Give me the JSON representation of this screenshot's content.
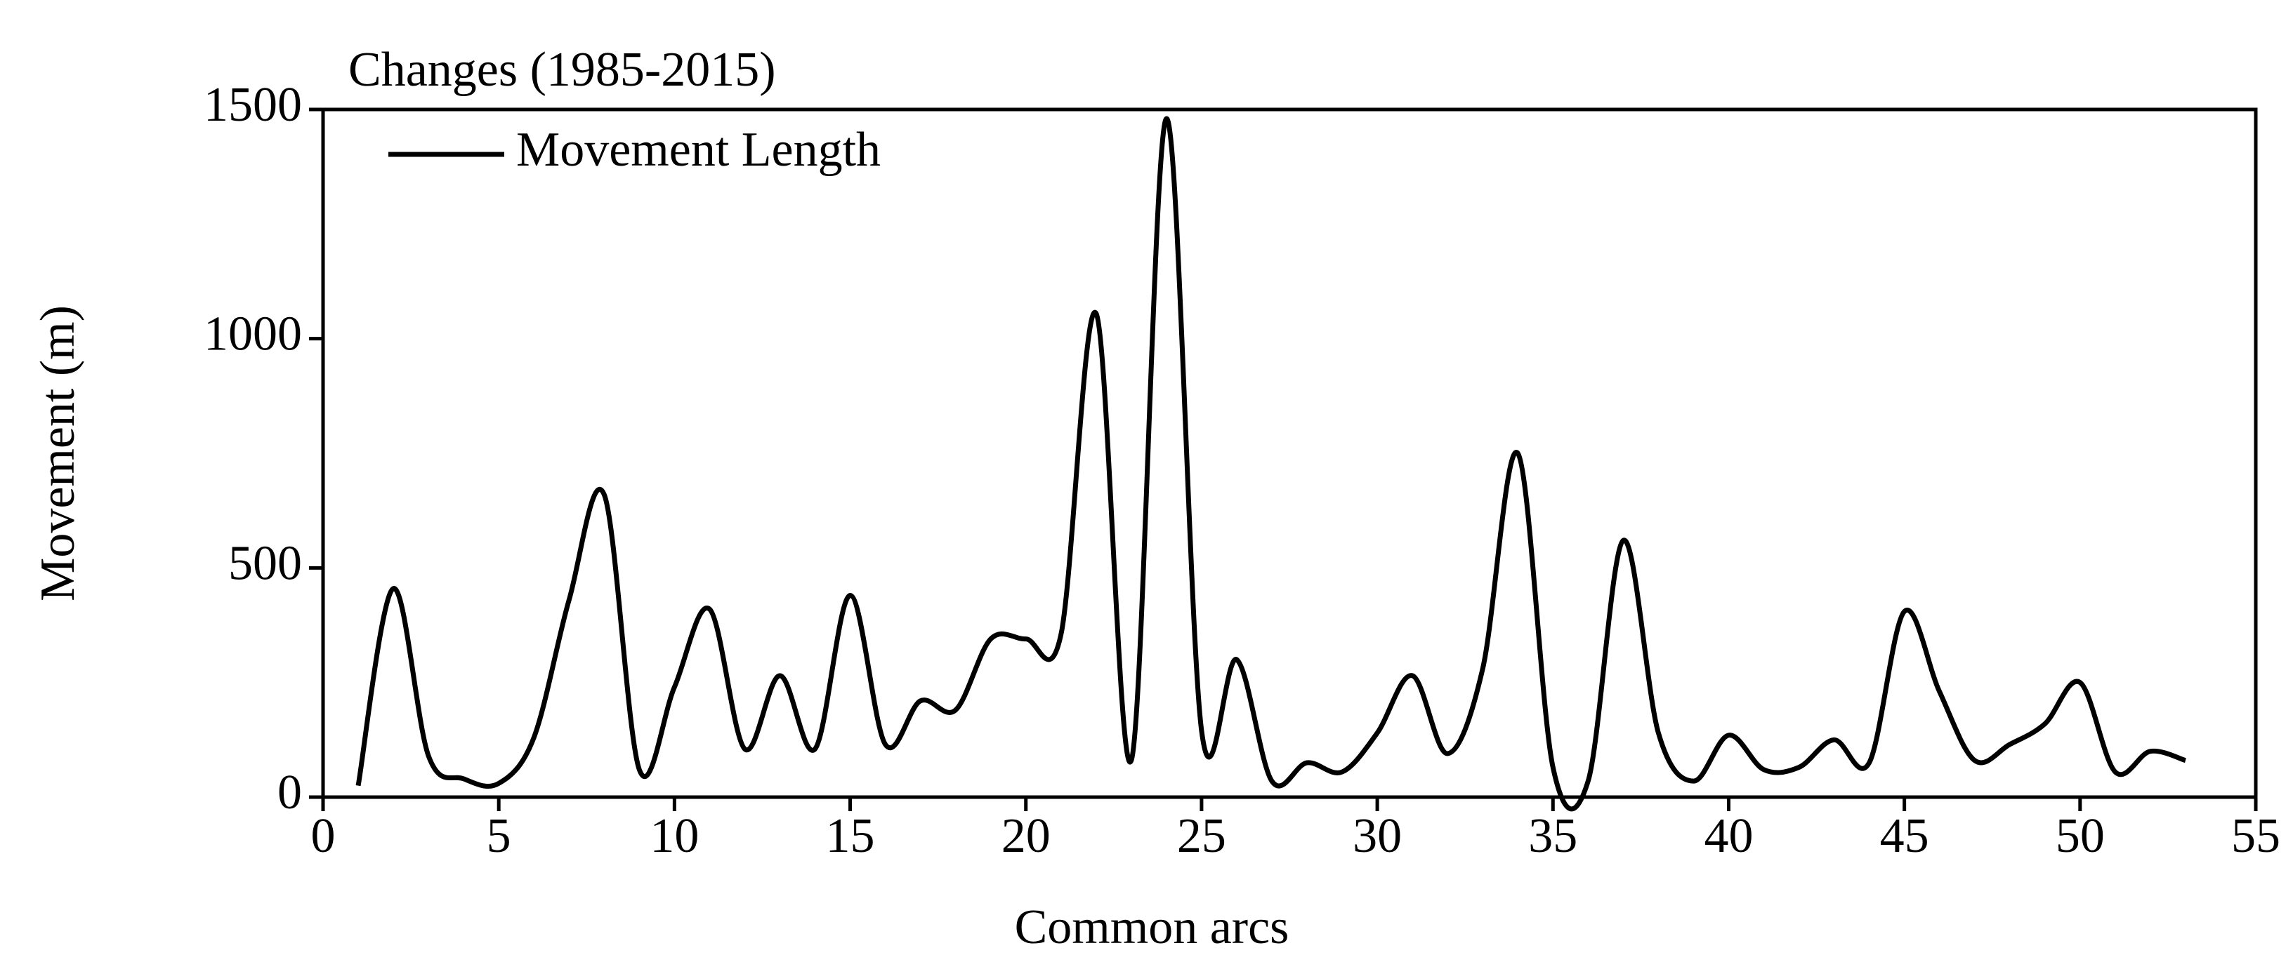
{
  "chart_data": {
    "type": "line",
    "title": "Changes (1985-2015)",
    "x_label": "Common arcs",
    "y_label": "Movement (m)",
    "x": [
      1,
      2,
      3,
      4,
      5,
      6,
      7,
      8,
      9,
      10,
      11,
      12,
      13,
      14,
      15,
      16,
      17,
      18,
      19,
      20,
      21,
      22,
      23,
      24,
      25,
      26,
      27,
      28,
      29,
      30,
      31,
      32,
      33,
      34,
      35,
      36,
      37,
      38,
      39,
      40,
      41,
      42,
      43,
      44,
      45,
      46,
      47,
      48,
      49,
      50,
      51,
      52,
      53
    ],
    "series": [
      {
        "name": "Movement Length",
        "color": "#000000",
        "values": [
          25,
          455,
          90,
          40,
          30,
          130,
          430,
          660,
          60,
          240,
          410,
          105,
          265,
          105,
          440,
          115,
          210,
          190,
          345,
          345,
          355,
          1055,
          80,
          1480,
          145,
          300,
          35,
          75,
          55,
          140,
          265,
          95,
          280,
          750,
          65,
          35,
          560,
          140,
          35,
          135,
          60,
          65,
          125,
          75,
          405,
          230,
          80,
          115,
          160,
          250,
          55,
          100,
          80
        ]
      }
    ],
    "xlim": [
      0,
      55
    ],
    "xticks": [
      0,
      5,
      10,
      15,
      20,
      25,
      30,
      35,
      40,
      45,
      50,
      55
    ],
    "ylim": [
      0,
      1500
    ],
    "yticks": [
      0,
      500,
      1000,
      1500
    ],
    "legend": "top-left"
  }
}
